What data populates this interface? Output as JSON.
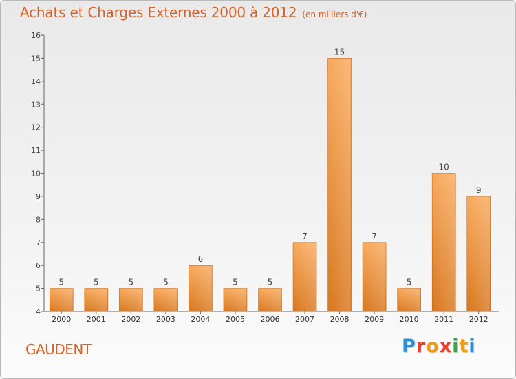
{
  "title": {
    "main": "Achats et Charges Externes 2000 à 2012",
    "unit": "(en milliers d'€)"
  },
  "commune": "GAUDENT",
  "logo": {
    "text": "Proxiti",
    "colors": [
      "#2b8fd6",
      "#e83d2c",
      "#f29a16",
      "#e83d2c",
      "#36a646",
      "#f29a16",
      "#2b8fd6"
    ]
  },
  "colors": {
    "title": "#d4622a",
    "bar_light": "#f7a75a",
    "bar_dark": "#dc7a22",
    "bar_edge": "#c96a1a"
  },
  "chart_data": {
    "type": "bar",
    "title": "Achats et Charges Externes 2000 à 2012",
    "xlabel": "",
    "ylabel": "(en milliers d'€)",
    "categories": [
      "2000",
      "2001",
      "2002",
      "2003",
      "2004",
      "2005",
      "2006",
      "2007",
      "2008",
      "2009",
      "2010",
      "2011",
      "2012"
    ],
    "values": [
      5,
      5,
      5,
      5,
      6,
      5,
      5,
      7,
      15,
      7,
      5,
      10,
      9
    ],
    "ylim": [
      4,
      16
    ],
    "yticks": [
      4,
      5,
      6,
      7,
      8,
      9,
      10,
      11,
      12,
      13,
      14,
      15,
      16
    ],
    "grid": false
  }
}
